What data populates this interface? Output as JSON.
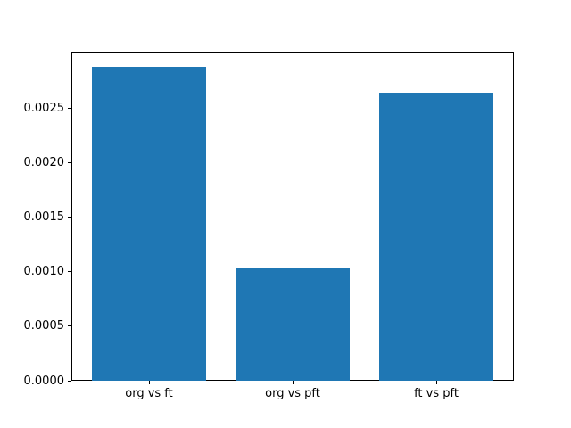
{
  "figure": {
    "background": "#ffffff"
  },
  "chart_data": {
    "type": "bar",
    "title": "",
    "xlabel": "",
    "ylabel": "",
    "categories": [
      "org vs ft",
      "org vs pft",
      "ft vs pft"
    ],
    "values": [
      0.00288,
      0.00104,
      0.00264
    ],
    "bar_color": "#1f77b4",
    "axis_color": "#000000",
    "text_color": "#000000",
    "ylim": [
      0,
      0.00302
    ],
    "yticks": [
      0,
      0.0005,
      0.001,
      0.0015,
      0.002,
      0.0025
    ],
    "ytick_labels": [
      "0.0000",
      "0.0005",
      "0.0010",
      "0.0015",
      "0.0020",
      "0.0025"
    ],
    "bar_width_fraction": 0.8,
    "grid": false,
    "legend": "none"
  }
}
